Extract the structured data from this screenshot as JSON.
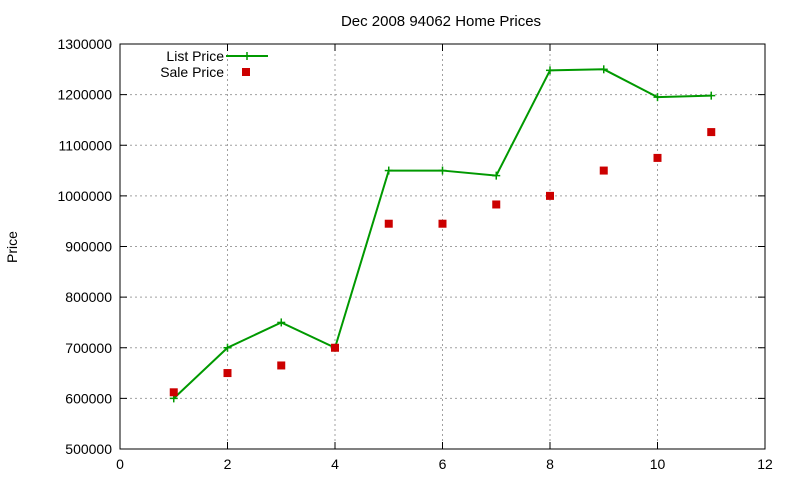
{
  "chart_data": {
    "type": "line",
    "title": "Dec 2008 94062 Home Prices",
    "xlabel": "",
    "ylabel": "Price",
    "xlim": [
      0,
      12
    ],
    "ylim": [
      500000,
      1300000
    ],
    "x_ticks": [
      "0",
      "2",
      "4",
      "6",
      "8",
      "10",
      "12"
    ],
    "y_ticks": [
      "500000",
      "600000",
      "700000",
      "800000",
      "900000",
      "1000000",
      "1100000",
      "1200000",
      "1300000"
    ],
    "grid": true,
    "legend_position": "top-left",
    "series": [
      {
        "name": "List Price",
        "style": "line+cross",
        "color": "#009900",
        "x": [
          1,
          2,
          3,
          4,
          5,
          6,
          7,
          8,
          9,
          10,
          11
        ],
        "y": [
          600000,
          700000,
          750000,
          700000,
          1050000,
          1050000,
          1040000,
          1248000,
          1250000,
          1195000,
          1198000
        ]
      },
      {
        "name": "Sale Price",
        "style": "square",
        "color": "#cc0000",
        "x": [
          1,
          2,
          3,
          4,
          5,
          6,
          7,
          8,
          9,
          10,
          11
        ],
        "y": [
          612000,
          650000,
          665000,
          700000,
          945000,
          945000,
          983000,
          1000000,
          1050000,
          1075000,
          1126000
        ]
      }
    ]
  }
}
